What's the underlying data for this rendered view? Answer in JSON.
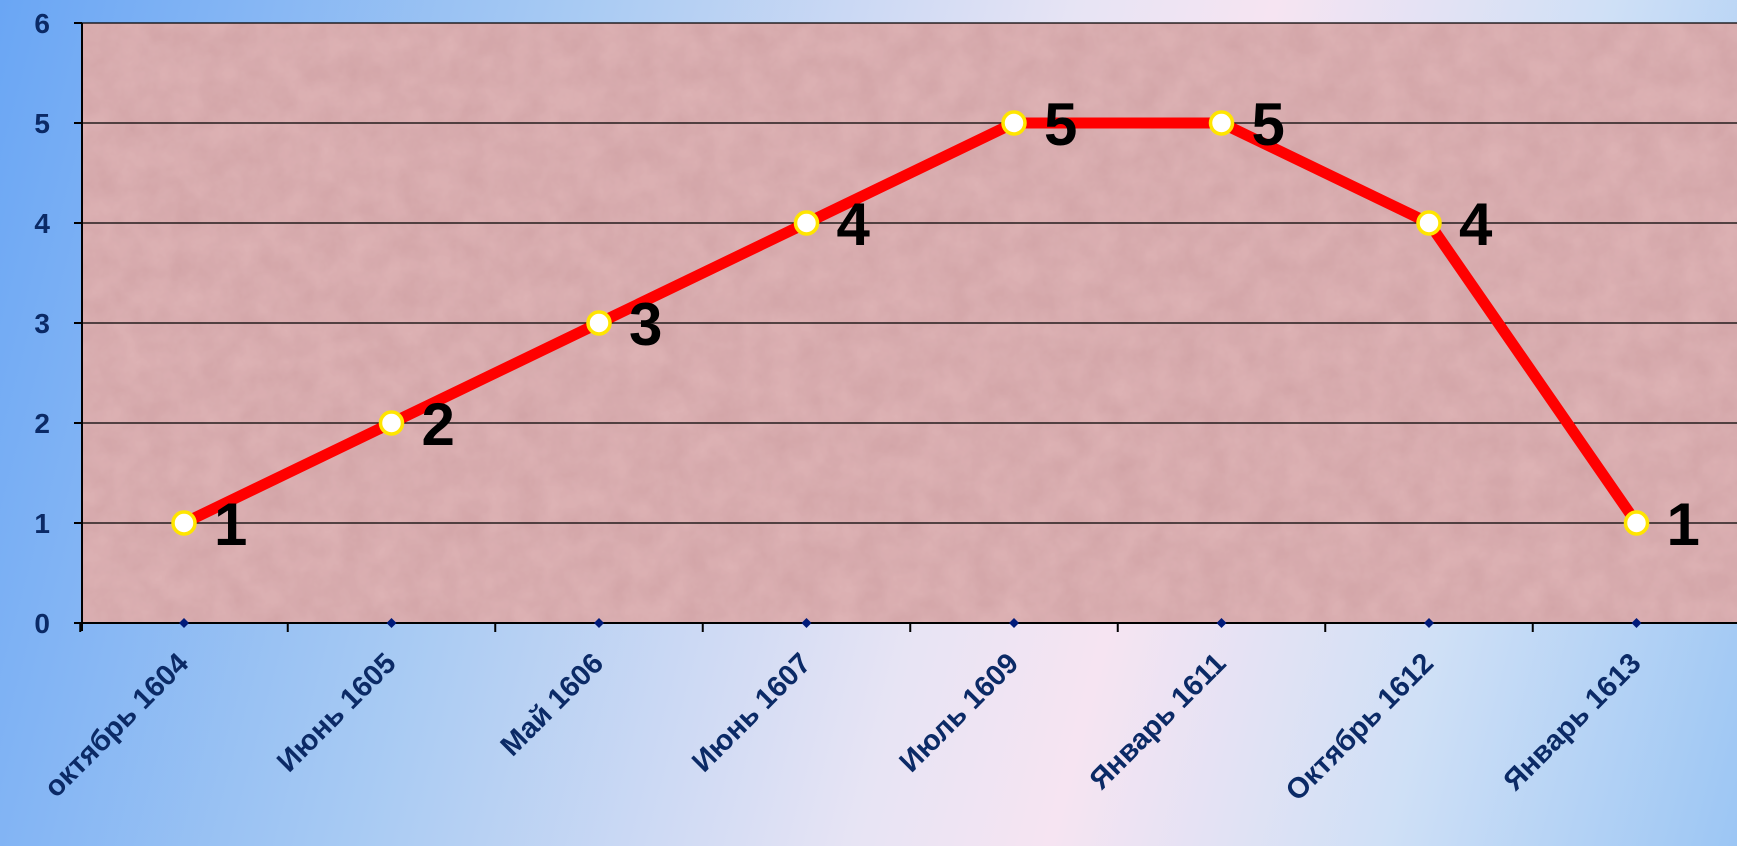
{
  "chart_data": {
    "type": "line",
    "categories": [
      "октябрь 1604",
      "Июнь 1605",
      "Май 1606",
      "Июнь 1607",
      "Июль 1609",
      "Январь 1611",
      "Октябрь 1612",
      "Январь 1613"
    ],
    "series": [
      {
        "values": [
          1,
          2,
          3,
          4,
          5,
          5,
          4,
          1
        ],
        "color": "#ff0000"
      }
    ],
    "data_labels": [
      "1",
      "2",
      "3",
      "4",
      "5",
      "5",
      "4",
      "1"
    ],
    "y_ticks": [
      "0",
      "1",
      "2",
      "3",
      "4",
      "5",
      "6"
    ],
    "ylim": [
      0,
      6
    ],
    "title": "",
    "xlabel": "",
    "ylabel": "",
    "grid": true,
    "legend": "none",
    "colors": {
      "line": "#ff0000",
      "marker_fill": "#ffffff",
      "marker_stroke": "#ffe500",
      "axis_text": "#0b2a66",
      "plot_bg": "#dfb4b6"
    }
  }
}
